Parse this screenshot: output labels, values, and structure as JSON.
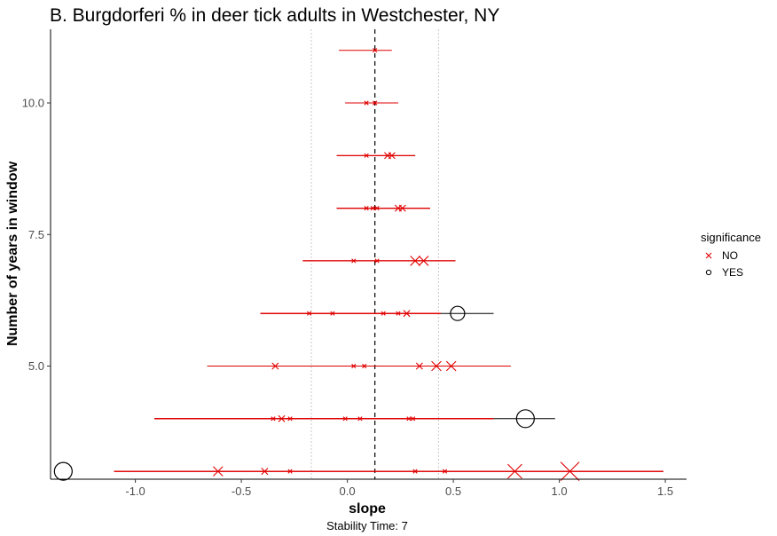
{
  "chart_data": {
    "type": "scatter",
    "title": "B. Burgdorferi % in deer tick adults in Westchester, NY",
    "xlabel": "slope",
    "ylabel": "Number of years in window",
    "caption": "Stability Time: 7",
    "xlim": [
      -1.4,
      1.6
    ],
    "ylim": [
      2.85,
      11.4
    ],
    "x_ticks": [
      -1.0,
      -0.5,
      0.0,
      0.5,
      1.0,
      1.5
    ],
    "x_tick_labels": [
      "-1.0",
      "-0.5",
      "0.0",
      "0.5",
      "1.0",
      "1.5"
    ],
    "y_ticks": [
      5.0,
      7.5,
      10.0
    ],
    "y_tick_labels": [
      "5.0",
      "7.5",
      "10.0"
    ],
    "reference_lines": {
      "dashed_slope": 0.13,
      "dotted_slopes": [
        -0.17,
        0.43
      ]
    },
    "grid": false,
    "legend": {
      "title": "significance",
      "position": "right",
      "entries": [
        {
          "label": "NO",
          "symbol": "x",
          "color": "#e00000"
        },
        {
          "label": "YES",
          "symbol": "circle",
          "color": "#000000"
        }
      ]
    },
    "points": [
      {
        "window": 11,
        "slope": 0.13,
        "ci": [
          -0.04,
          0.21
        ],
        "significant": "NO",
        "size": 1
      },
      {
        "window": 10,
        "slope": 0.09,
        "ci": [
          -0.01,
          0.24
        ],
        "significant": "NO",
        "size": 1
      },
      {
        "window": 10,
        "slope": 0.13,
        "ci": [
          -0.01,
          0.24
        ],
        "significant": "NO",
        "size": 1
      },
      {
        "window": 9,
        "slope": 0.09,
        "ci": [
          -0.05,
          0.32
        ],
        "significant": "NO",
        "size": 1
      },
      {
        "window": 9,
        "slope": 0.19,
        "ci": [
          -0.05,
          0.32
        ],
        "significant": "NO",
        "size": 2
      },
      {
        "window": 9,
        "slope": 0.21,
        "ci": [
          -0.05,
          0.32
        ],
        "significant": "NO",
        "size": 2
      },
      {
        "window": 8,
        "slope": 0.09,
        "ci": [
          -0.05,
          0.39
        ],
        "significant": "NO",
        "size": 1
      },
      {
        "window": 8,
        "slope": 0.12,
        "ci": [
          -0.05,
          0.39
        ],
        "significant": "NO",
        "size": 1
      },
      {
        "window": 8,
        "slope": 0.14,
        "ci": [
          -0.05,
          0.39
        ],
        "significant": "NO",
        "size": 1
      },
      {
        "window": 8,
        "slope": 0.24,
        "ci": [
          -0.05,
          0.39
        ],
        "significant": "NO",
        "size": 2
      },
      {
        "window": 8,
        "slope": 0.26,
        "ci": [
          -0.05,
          0.39
        ],
        "significant": "NO",
        "size": 2
      },
      {
        "window": 7,
        "slope": 0.03,
        "ci": [
          -0.21,
          0.51
        ],
        "significant": "NO",
        "size": 1
      },
      {
        "window": 7,
        "slope": 0.14,
        "ci": [
          -0.21,
          0.51
        ],
        "significant": "NO",
        "size": 1
      },
      {
        "window": 7,
        "slope": 0.32,
        "ci": [
          -0.21,
          0.51
        ],
        "significant": "NO",
        "size": 3
      },
      {
        "window": 7,
        "slope": 0.36,
        "ci": [
          -0.21,
          0.51
        ],
        "significant": "NO",
        "size": 3
      },
      {
        "window": 6,
        "slope": -0.18,
        "ci": [
          -0.41,
          0.44
        ],
        "significant": "NO",
        "size": 1
      },
      {
        "window": 6,
        "slope": -0.07,
        "ci": [
          -0.41,
          0.44
        ],
        "significant": "NO",
        "size": 1
      },
      {
        "window": 6,
        "slope": 0.17,
        "ci": [
          -0.41,
          0.44
        ],
        "significant": "NO",
        "size": 1
      },
      {
        "window": 6,
        "slope": 0.24,
        "ci": [
          -0.41,
          0.44
        ],
        "significant": "NO",
        "size": 1
      },
      {
        "window": 6,
        "slope": 0.28,
        "ci": [
          -0.41,
          0.44
        ],
        "significant": "NO",
        "size": 2
      },
      {
        "window": 6,
        "slope": 0.52,
        "ci": [
          0.44,
          0.69
        ],
        "significant": "YES",
        "size": 3
      },
      {
        "window": 5,
        "slope": -0.34,
        "ci": [
          -0.66,
          0.77
        ],
        "significant": "NO",
        "size": 2
      },
      {
        "window": 5,
        "slope": 0.03,
        "ci": [
          -0.66,
          0.77
        ],
        "significant": "NO",
        "size": 1
      },
      {
        "window": 5,
        "slope": 0.08,
        "ci": [
          -0.66,
          0.77
        ],
        "significant": "NO",
        "size": 1
      },
      {
        "window": 5,
        "slope": 0.34,
        "ci": [
          -0.66,
          0.77
        ],
        "significant": "NO",
        "size": 2
      },
      {
        "window": 5,
        "slope": 0.42,
        "ci": [
          -0.66,
          0.77
        ],
        "significant": "NO",
        "size": 3
      },
      {
        "window": 5,
        "slope": 0.49,
        "ci": [
          -0.66,
          0.77
        ],
        "significant": "NO",
        "size": 3
      },
      {
        "window": 4,
        "slope": -0.35,
        "ci": [
          -0.91,
          0.69
        ],
        "significant": "NO",
        "size": 1
      },
      {
        "window": 4,
        "slope": -0.31,
        "ci": [
          -0.91,
          0.69
        ],
        "significant": "NO",
        "size": 2
      },
      {
        "window": 4,
        "slope": -0.27,
        "ci": [
          -0.91,
          0.69
        ],
        "significant": "NO",
        "size": 1
      },
      {
        "window": 4,
        "slope": -0.01,
        "ci": [
          -0.91,
          0.69
        ],
        "significant": "NO",
        "size": 1
      },
      {
        "window": 4,
        "slope": 0.06,
        "ci": [
          -0.91,
          0.69
        ],
        "significant": "NO",
        "size": 1
      },
      {
        "window": 4,
        "slope": 0.29,
        "ci": [
          -0.91,
          0.69
        ],
        "significant": "NO",
        "size": 1
      },
      {
        "window": 4,
        "slope": 0.31,
        "ci": [
          -0.91,
          0.69
        ],
        "significant": "NO",
        "size": 1
      },
      {
        "window": 4,
        "slope": 0.84,
        "ci": [
          0.69,
          0.98
        ],
        "significant": "YES",
        "size": 4
      },
      {
        "window": 3,
        "slope": -1.34,
        "ci": [
          -1.34,
          -1.34
        ],
        "significant": "YES",
        "size": 4
      },
      {
        "window": 3,
        "slope": -0.61,
        "ci": [
          -1.1,
          1.49
        ],
        "significant": "NO",
        "size": 3
      },
      {
        "window": 3,
        "slope": -0.39,
        "ci": [
          -1.1,
          1.49
        ],
        "significant": "NO",
        "size": 2
      },
      {
        "window": 3,
        "slope": -0.27,
        "ci": [
          -1.1,
          1.49
        ],
        "significant": "NO",
        "size": 1
      },
      {
        "window": 3,
        "slope": 0.32,
        "ci": [
          -1.1,
          1.49
        ],
        "significant": "NO",
        "size": 1
      },
      {
        "window": 3,
        "slope": 0.46,
        "ci": [
          -1.1,
          1.49
        ],
        "significant": "NO",
        "size": 1
      },
      {
        "window": 3,
        "slope": 0.79,
        "ci": [
          -1.1,
          1.49
        ],
        "significant": "NO",
        "size": 4
      },
      {
        "window": 3,
        "slope": 1.05,
        "ci": [
          -1.1,
          1.49
        ],
        "significant": "NO",
        "size": 5
      }
    ]
  }
}
